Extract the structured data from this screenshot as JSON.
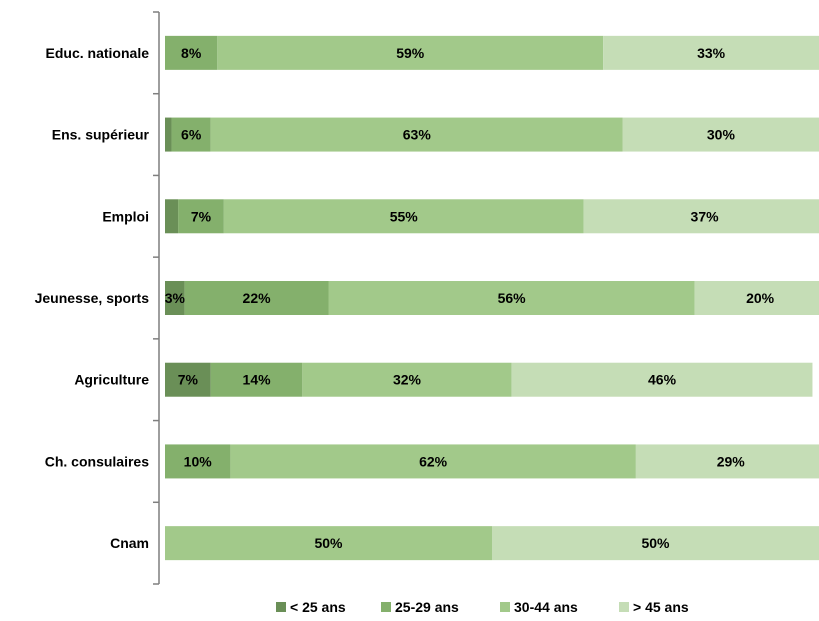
{
  "chart_data": {
    "type": "bar",
    "orientation": "horizontal",
    "stacked": true,
    "percent": true,
    "categories": [
      "Educ. nationale",
      "Ens. supérieur",
      "Emploi",
      "Jeunesse, sports",
      "Agriculture",
      "Ch. consulaires",
      "Cnam"
    ],
    "series": [
      {
        "name": "< 25 ans",
        "color": "#6a8f57",
        "values": [
          0,
          1,
          2,
          3,
          7,
          0,
          0
        ],
        "labels": [
          "",
          "",
          "",
          "3%",
          "7%",
          "",
          ""
        ]
      },
      {
        "name": "25-29 ans",
        "color": "#84b06c",
        "values": [
          8,
          6,
          7,
          22,
          14,
          10,
          0
        ],
        "labels": [
          "8%",
          "6%",
          "7%",
          "22%",
          "14%",
          "10%",
          ""
        ]
      },
      {
        "name": "30-44 ans",
        "color": "#a2c98a",
        "values": [
          59,
          63,
          55,
          56,
          32,
          62,
          50
        ],
        "labels": [
          "59%",
          "63%",
          "55%",
          "56%",
          "32%",
          "62%",
          "50%"
        ]
      },
      {
        "name": "> 45 ans",
        "color": "#c5ddb6",
        "values": [
          33,
          30,
          37,
          20,
          46,
          29,
          50
        ],
        "labels": [
          "33%",
          "30%",
          "37%",
          "20%",
          "46%",
          "29%",
          "50%"
        ]
      }
    ],
    "xlim": [
      0,
      100
    ],
    "grid": false,
    "legend_position": "bottom"
  }
}
